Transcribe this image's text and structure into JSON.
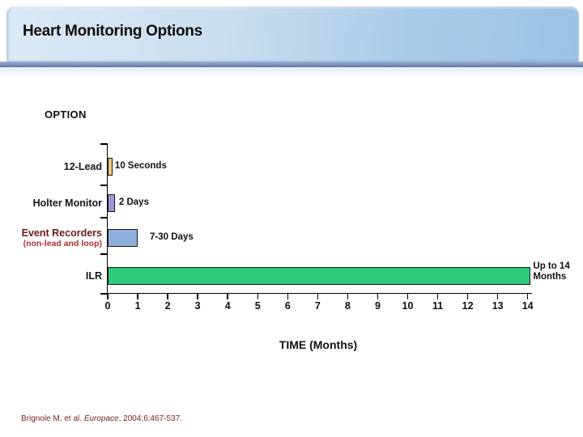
{
  "slide": {
    "title": "Heart Monitoring Options",
    "citation": {
      "prefix": "Brignole M, et al. ",
      "journal": "Europace",
      "suffix": ", 2004;6:467-537."
    }
  },
  "chart_data": {
    "type": "bar",
    "orientation": "horizontal",
    "title": "OPTION",
    "xlabel": "TIME (Months)",
    "xlim": [
      0,
      14
    ],
    "xtick_labels": [
      "0",
      "1",
      "2",
      "3",
      "4",
      "5",
      "6",
      "7",
      "8",
      "9",
      "10",
      "11",
      "12",
      "13",
      "14"
    ],
    "grid": false,
    "series": [
      {
        "category": "12-Lead",
        "sublabel": "",
        "value_label": "10 Seconds",
        "bar_months": 0.16,
        "color": "#e8c87a",
        "label_color": "#15151d"
      },
      {
        "category": "Holter Monitor",
        "sublabel": "",
        "value_label": "2 Days",
        "bar_months": 0.24,
        "color": "#a493d6",
        "label_color": "#15151d"
      },
      {
        "category": "Event Recorders",
        "sublabel": "(non-lead and loop)",
        "value_label": "7-30 Days",
        "bar_months": 1.0,
        "color": "#8fafdc",
        "label_color": "#6d1b1b",
        "sublabel_color": "#b03030"
      },
      {
        "category": "ILR",
        "sublabel": "",
        "value_label": "Up to 14 Months",
        "value_label_lines": [
          "Up to 14",
          "Months"
        ],
        "bar_months": 14.1,
        "color": "#2ecb7a",
        "label_color": "#15151d"
      }
    ]
  }
}
